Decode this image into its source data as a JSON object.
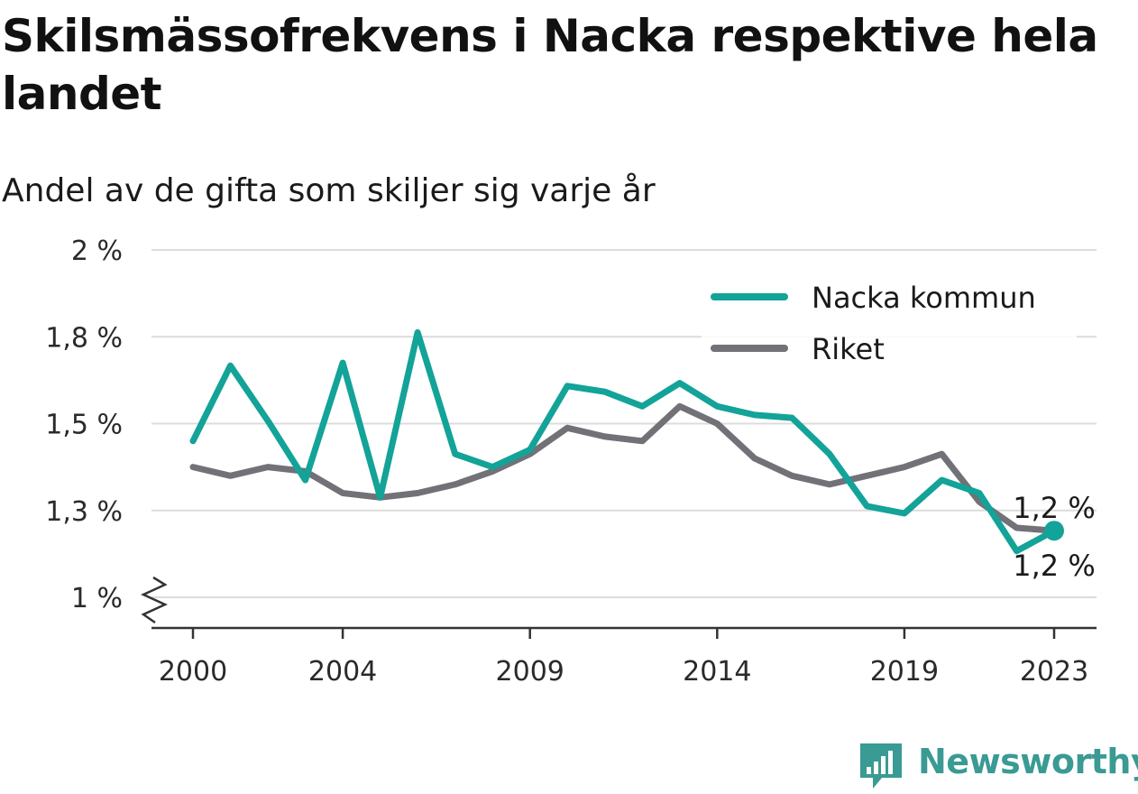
{
  "header": {
    "title": "Skilsmässofrekvens i Nacka respektive hela landet",
    "subtitle": "Andel av de gifta som skiljer sig varje år"
  },
  "brand": {
    "name": "Newsworthy",
    "color": "#3a9a94"
  },
  "colors": {
    "nacka": "#13a398",
    "riket": "#717177",
    "grid": "#dcdcdc",
    "axis": "#333333"
  },
  "chart_data": {
    "type": "line",
    "x": [
      2000,
      2001,
      2002,
      2003,
      2004,
      2005,
      2006,
      2007,
      2008,
      2009,
      2010,
      2011,
      2012,
      2013,
      2014,
      2015,
      2016,
      2017,
      2018,
      2019,
      2020,
      2021,
      2022,
      2023
    ],
    "series": [
      {
        "name": "Nacka kommun",
        "values": [
          1.46,
          1.7,
          1.51,
          1.37,
          1.71,
          1.33,
          1.81,
          1.43,
          1.4,
          1.44,
          1.63,
          1.61,
          1.56,
          1.64,
          1.56,
          1.53,
          1.52,
          1.43,
          1.31,
          1.29,
          1.37,
          1.34,
          1.16,
          1.23
        ]
      },
      {
        "name": "Riket",
        "values": [
          1.4,
          1.38,
          1.4,
          1.39,
          1.34,
          1.33,
          1.34,
          1.36,
          1.39,
          1.43,
          1.49,
          1.47,
          1.46,
          1.56,
          1.5,
          1.42,
          1.38,
          1.36,
          1.38,
          1.4,
          1.43,
          1.32,
          1.24,
          1.23
        ]
      }
    ],
    "yticks": [
      {
        "value": 1.0,
        "label": "1 %"
      },
      {
        "value": 1.3,
        "label": "1,3 %"
      },
      {
        "value": 1.5,
        "label": "1,5 %"
      },
      {
        "value": 1.8,
        "label": "1,8 %"
      },
      {
        "value": 2.0,
        "label": "2 %"
      }
    ],
    "xticks": [
      2000,
      2004,
      2009,
      2014,
      2019,
      2023
    ],
    "ylim": [
      1.0,
      2.0
    ],
    "axis_break": true,
    "legend_position": "top-right",
    "end_labels": [
      {
        "series": "Nacka kommun",
        "label": "1,2 %"
      },
      {
        "series": "Riket",
        "label": "1,2 %"
      }
    ]
  }
}
